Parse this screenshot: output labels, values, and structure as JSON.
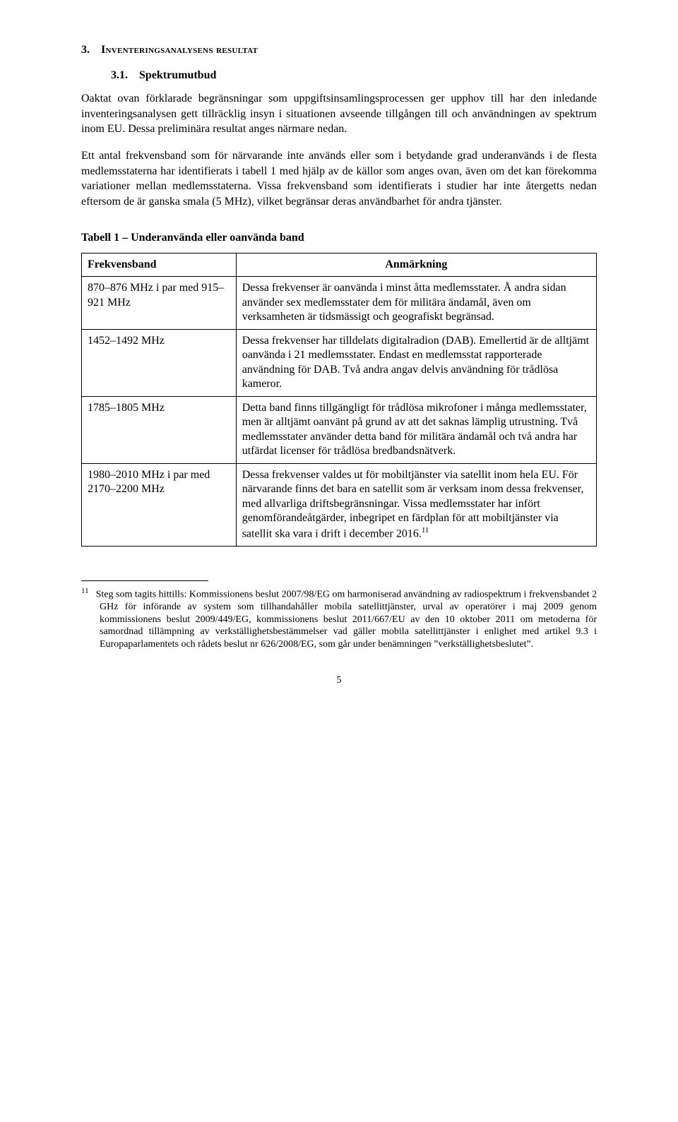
{
  "section": {
    "number": "3.",
    "title": "Inventeringsanalysens resultat"
  },
  "subsection": {
    "number": "3.1.",
    "title": "Spektrumutbud"
  },
  "paragraphs": {
    "p1": "Oaktat ovan förklarade begränsningar som uppgiftsinsamlingsprocessen ger upphov till har den inledande inventeringsanalysen gett tillräcklig insyn i situationen avseende tillgången till och användningen av spektrum inom EU. Dessa preliminära resultat anges närmare nedan.",
    "p2": "Ett antal frekvensband som för närvarande inte används eller som i betydande grad underanvänds i de flesta medlemsstaterna har identifierats i tabell 1 med hjälp av de källor som anges ovan, även om det kan förekomma variationer mellan medlemsstaterna. Vissa frekvensband som identifierats i studier har inte återgetts nedan eftersom de är ganska smala (5 MHz), vilket begränsar deras användbarhet för andra tjänster."
  },
  "table": {
    "title": "Tabell 1 – Underanvända eller oanvända band",
    "headers": {
      "c1": "Frekvensband",
      "c2": "Anmärkning"
    },
    "rows": [
      {
        "band": "870–876 MHz i par med 915–921 MHz",
        "note": "Dessa frekvenser är oanvända i minst åtta medlemsstater. Å andra sidan använder sex medlemsstater dem för militära ändamål, även om verksamheten är tidsmässigt och geografiskt begränsad."
      },
      {
        "band": "1452–1492 MHz",
        "note": "Dessa frekvenser har tilldelats digitalradion (DAB). Emellertid är de alltjämt oanvända i 21 medlemsstater. Endast en medlemsstat rapporterade användning för DAB. Två andra angav delvis användning för trådlösa kameror."
      },
      {
        "band": "1785–1805 MHz",
        "note": "Detta band finns tillgängligt för trådlösa mikrofoner i många medlemsstater, men är alltjämt oanvänt på grund av att det saknas lämplig utrustning. Två medlemsstater använder detta band för militära ändamål och två andra har utfärdat licenser för trådlösa bredbandsnätverk."
      },
      {
        "band": "1980–2010 MHz i par med 2170–2200 MHz",
        "note_prefix": "Dessa frekvenser valdes ut för mobiltjänster via satellit inom hela EU. För närvarande finns det bara en satellit som är verksam inom dessa frekvenser, med allvarliga driftsbegränsningar. Vissa medlemsstater har infört genomförandeåtgärder, inbegripet en färdplan för att mobiltjänster via satellit ska vara i drift i december 2016.",
        "fn_mark": "11"
      }
    ]
  },
  "footnote": {
    "num": "11",
    "text": "Steg som tagits hittills: Kommissionens beslut 2007/98/EG om harmoniserad användning av radiospektrum i frekvensbandet 2 GHz för införande av system som tillhandahåller mobila satellittjänster, urval av operatörer i maj 2009 genom kommissionens beslut 2009/449/EG, kommissionens beslut 2011/667/EU av den 10 oktober 2011 om metoderna för samordnad tillämpning av verkställighetsbestämmelser vad gäller mobila satellittjänster i enlighet med artikel 9.3 i Europaparlamentets och rådets beslut nr 626/2008/EG, som går under benämningen ”verkställighetsbeslutet”."
  },
  "page_number": "5"
}
